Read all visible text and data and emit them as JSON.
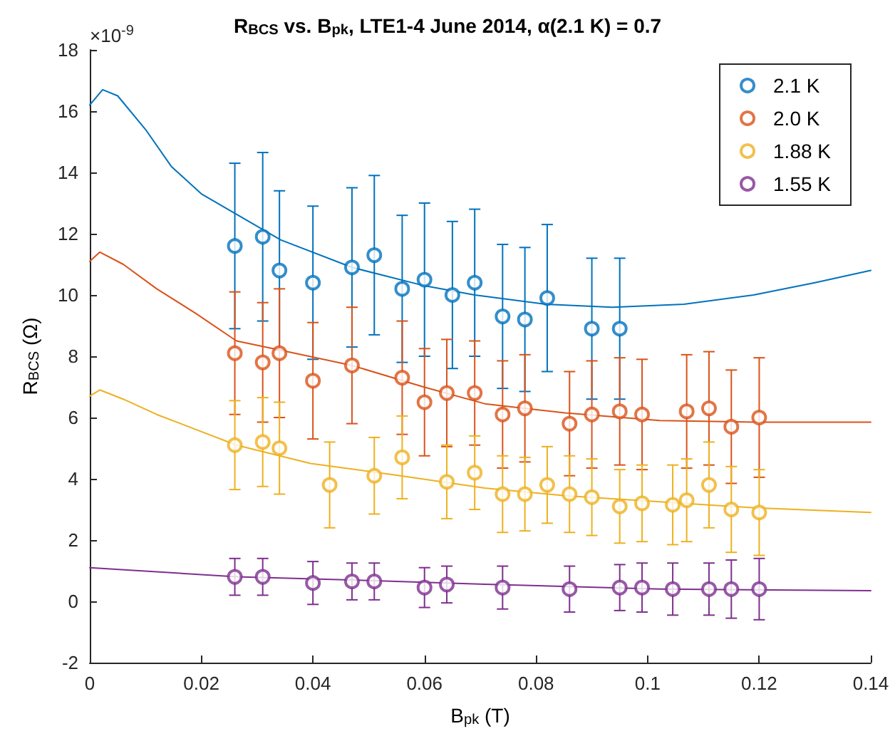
{
  "chart_data": {
    "type": "scatter",
    "title": "R$_{BCS}$ vs. B$_{pk}$, LTE1-4 June 2014, α(2.1 K) = 0.7",
    "xlabel": "B$_{pk}$ (T)",
    "ylabel": "R$_{BCS}$ (Ω)",
    "annotations": [
      "×10$^{-9}$"
    ],
    "xlim": [
      0,
      0.14
    ],
    "xticks": [
      0,
      0.02,
      0.04,
      0.06,
      0.08,
      0.1,
      0.12,
      0.14
    ],
    "ylim": [
      -2,
      18
    ],
    "yticks": [
      -2,
      0,
      2,
      4,
      6,
      8,
      10,
      12,
      14,
      16,
      18
    ],
    "grid": false,
    "legend": "top right",
    "marker": "circle",
    "series": [
      {
        "name": "2.1 K",
        "color": "#0072bd",
        "x": [
          0.026,
          0.031,
          0.034,
          0.04,
          0.047,
          0.051,
          0.056,
          0.06,
          0.065,
          0.069,
          0.074,
          0.078,
          0.082,
          0.09,
          0.095
        ],
        "values": [
          11.6,
          11.9,
          10.8,
          10.4,
          10.9,
          11.3,
          10.2,
          10.5,
          10.0,
          10.4,
          9.3,
          9.2,
          9.9,
          8.9,
          8.9
        ],
        "errors": [
          2.7,
          2.75,
          2.6,
          2.5,
          2.6,
          2.6,
          2.4,
          2.5,
          2.4,
          2.4,
          2.35,
          2.35,
          2.4,
          2.3,
          2.3
        ]
      },
      {
        "name": "2.0 K",
        "color": "#d95319",
        "x": [
          0.026,
          0.031,
          0.034,
          0.04,
          0.047,
          0.056,
          0.06,
          0.064,
          0.069,
          0.074,
          0.078,
          0.086,
          0.09,
          0.095,
          0.099,
          0.107,
          0.111,
          0.115,
          0.12
        ],
        "values": [
          8.1,
          7.8,
          8.1,
          7.2,
          7.7,
          7.3,
          6.5,
          6.8,
          6.8,
          6.1,
          6.3,
          5.8,
          6.1,
          6.2,
          6.1,
          6.2,
          6.3,
          5.7,
          6.0
        ],
        "errors": [
          2.0,
          1.95,
          2.1,
          1.9,
          1.9,
          1.85,
          1.75,
          1.75,
          1.7,
          1.75,
          1.75,
          1.7,
          1.75,
          1.75,
          1.8,
          1.85,
          1.85,
          1.85,
          1.95
        ]
      },
      {
        "name": "1.88 K",
        "color": "#edb120",
        "x": [
          0.026,
          0.031,
          0.034,
          0.043,
          0.051,
          0.056,
          0.064,
          0.069,
          0.074,
          0.078,
          0.082,
          0.086,
          0.09,
          0.095,
          0.099,
          0.1045,
          0.107,
          0.111,
          0.115,
          0.12
        ],
        "values": [
          5.1,
          5.2,
          5.0,
          3.8,
          4.1,
          4.7,
          3.9,
          4.2,
          3.5,
          3.5,
          3.8,
          3.5,
          3.4,
          3.1,
          3.2,
          3.15,
          3.3,
          3.8,
          3.0,
          2.9
        ],
        "errors": [
          1.45,
          1.45,
          1.5,
          1.4,
          1.25,
          1.35,
          1.2,
          1.2,
          1.25,
          1.2,
          1.25,
          1.25,
          1.25,
          1.2,
          1.25,
          1.3,
          1.35,
          1.4,
          1.4,
          1.4
        ]
      },
      {
        "name": "1.55 K",
        "color": "#7e2f8e",
        "x": [
          0.026,
          0.031,
          0.04,
          0.047,
          0.051,
          0.06,
          0.064,
          0.074,
          0.086,
          0.095,
          0.099,
          0.1045,
          0.111,
          0.115,
          0.12
        ],
        "values": [
          0.8,
          0.8,
          0.6,
          0.65,
          0.65,
          0.45,
          0.55,
          0.45,
          0.4,
          0.45,
          0.45,
          0.4,
          0.4,
          0.4,
          0.4
        ],
        "errors": [
          0.6,
          0.6,
          0.7,
          0.6,
          0.6,
          0.65,
          0.6,
          0.7,
          0.75,
          0.75,
          0.8,
          0.85,
          0.85,
          0.95,
          1.0
        ]
      },
      {
        "type": "line",
        "marker": "none",
        "color": "#0072bd",
        "x": [
          0,
          0.0023,
          0.005,
          0.01,
          0.0146,
          0.02,
          0.0266,
          0.0342,
          0.047,
          0.06,
          0.069,
          0.0817,
          0.0937,
          0.1065,
          0.119,
          0.13,
          0.14
        ],
        "values": [
          16.2,
          16.7,
          16.5,
          15.4,
          14.2,
          13.3,
          12.6,
          11.8,
          10.9,
          10.3,
          10.0,
          9.7,
          9.6,
          9.7,
          10.0,
          10.4,
          10.8
        ]
      },
      {
        "type": "line",
        "marker": "none",
        "color": "#d95319",
        "x": [
          0,
          0.0018,
          0.006,
          0.012,
          0.019,
          0.0263,
          0.0342,
          0.047,
          0.0598,
          0.0708,
          0.0852,
          0.1022,
          0.1193,
          0.14
        ],
        "values": [
          11.1,
          11.4,
          11.0,
          10.2,
          9.4,
          8.5,
          8.2,
          7.7,
          7.0,
          6.45,
          6.15,
          5.9,
          5.85,
          5.85
        ]
      },
      {
        "type": "line",
        "marker": "none",
        "color": "#edb120",
        "x": [
          0,
          0.0018,
          0.006,
          0.012,
          0.0263,
          0.0396,
          0.0557,
          0.0708,
          0.0852,
          0.1022,
          0.1193,
          0.14
        ],
        "values": [
          6.7,
          6.9,
          6.6,
          6.1,
          5.1,
          4.5,
          4.1,
          3.7,
          3.45,
          3.25,
          3.05,
          2.9
        ]
      },
      {
        "type": "line",
        "marker": "none",
        "color": "#7e2f8e",
        "x": [
          0,
          0.0263,
          0.05,
          0.0708,
          0.1022,
          0.14
        ],
        "values": [
          1.1,
          0.8,
          0.68,
          0.56,
          0.4,
          0.35
        ]
      }
    ]
  }
}
